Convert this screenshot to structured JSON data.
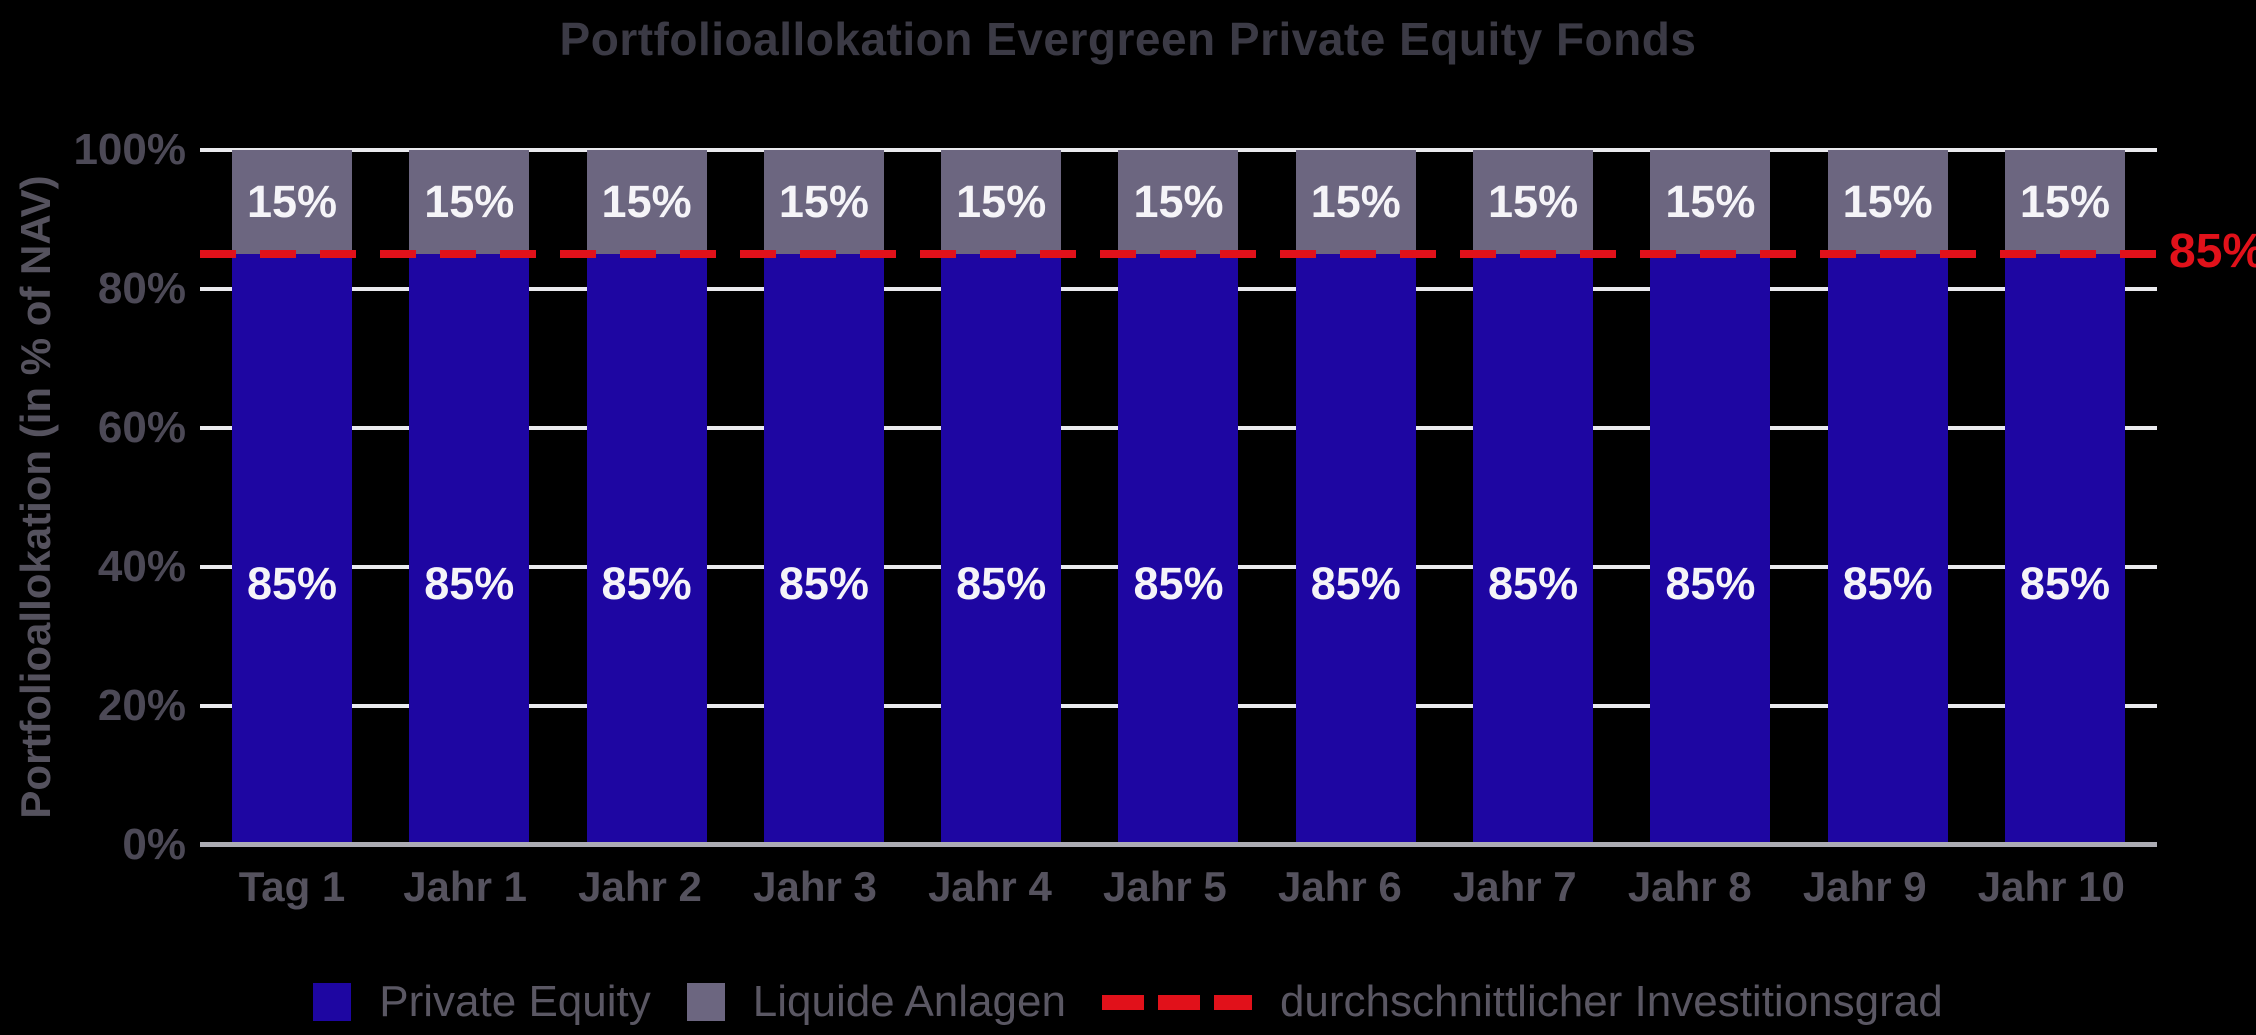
{
  "title": "Portfolioallokation Evergreen Private Equity Fonds",
  "y_axis": {
    "label": "Portfolioallokation (in % of NAV)",
    "ticks": [
      {
        "value": 100,
        "label": "100%"
      },
      {
        "value": 80,
        "label": "80%"
      },
      {
        "value": 60,
        "label": "60%"
      },
      {
        "value": 40,
        "label": "40%"
      },
      {
        "value": 20,
        "label": "20%"
      },
      {
        "value": 0,
        "label": "0%"
      }
    ]
  },
  "reference_annotation": "85%",
  "legend": {
    "items": [
      {
        "label": "Private Equity",
        "marker": "square",
        "color": "#1E06A2"
      },
      {
        "label": "Liquide Anlagen",
        "marker": "square",
        "color": "#6C6680"
      },
      {
        "label": "durchschnittlicher Investitionsgrad",
        "marker": "dashed-line",
        "color": "#E1111A"
      }
    ]
  },
  "chart_data": {
    "type": "bar",
    "stacked": true,
    "title": "Portfolioallokation Evergreen Private Equity Fonds",
    "xlabel": "",
    "ylabel": "Portfolioallokation (in % of NAV)",
    "ylim": [
      0,
      100
    ],
    "ytick_values": [
      0,
      20,
      40,
      60,
      80,
      100
    ],
    "grid": true,
    "legend_position": "bottom",
    "categories": [
      "Tag 1",
      "Jahr 1",
      "Jahr 2",
      "Jahr 3",
      "Jahr 4",
      "Jahr 5",
      "Jahr 6",
      "Jahr 7",
      "Jahr 8",
      "Jahr 9",
      "Jahr 10"
    ],
    "series": [
      {
        "name": "Private Equity",
        "color": "#1E06A2",
        "values": [
          85,
          85,
          85,
          85,
          85,
          85,
          85,
          85,
          85,
          85,
          85
        ],
        "bar_labels": [
          "85%",
          "85%",
          "85%",
          "85%",
          "85%",
          "85%",
          "85%",
          "85%",
          "85%",
          "85%",
          "85%"
        ]
      },
      {
        "name": "Liquide Anlagen",
        "color": "#6C6680",
        "values": [
          15,
          15,
          15,
          15,
          15,
          15,
          15,
          15,
          15,
          15,
          15
        ],
        "bar_labels": [
          "15%",
          "15%",
          "15%",
          "15%",
          "15%",
          "15%",
          "15%",
          "15%",
          "15%",
          "15%",
          "15%"
        ]
      }
    ],
    "reference_line": {
      "value": 85,
      "label": "85%",
      "style": "dashed",
      "color": "#E1111A",
      "name": "durchschnittlicher Investitionsgrad"
    }
  },
  "colors": {
    "background": "#000000",
    "private_equity": "#1E06A2",
    "liquide_anlagen": "#6C6680",
    "reference": "#E1111A",
    "gridline": "#EAEAEE",
    "axis_line": "#ACACB4",
    "title_text": "#3B3A45",
    "tick_text": "#4C4956",
    "axis_text": "#55525E",
    "legend_text": "#5A5763",
    "bar_label_text": "#F5F4F8"
  }
}
